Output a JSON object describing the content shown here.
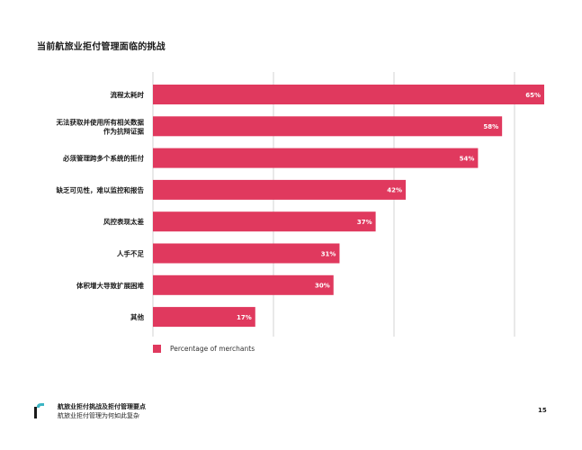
{
  "page": {
    "title": "当前航旅业拒付管理面临的挑战",
    "footer_line1": "航旅业拒付挑战及拒付管理要点",
    "footer_line2": "航旅业拒付管理为何如此复杂",
    "page_number": "15"
  },
  "colors": {
    "bar": "#e0395e",
    "grid": "#c8c8c8",
    "logo_teal": "#3bb5c4"
  },
  "chart_data": {
    "type": "bar",
    "orientation": "horizontal",
    "title": "",
    "xlabel": "",
    "ylabel": "",
    "xlim": [
      0,
      65
    ],
    "grid": true,
    "legend_position": "bottom-left",
    "value_suffix": "%",
    "categories": [
      [
        "流程太耗时"
      ],
      [
        "无法获取并使用所有相关数据",
        "作为抗辩证据"
      ],
      [
        "必须管理跨多个系统的拒付"
      ],
      [
        "缺乏可见性，难以监控和报告"
      ],
      [
        "风控表现太差"
      ],
      [
        "人手不足"
      ],
      [
        "体积增大导致扩展困难"
      ],
      [
        "其他"
      ]
    ],
    "series": [
      {
        "name": "Percentage of merchants",
        "values": [
          65,
          58,
          54,
          42,
          37,
          31,
          30,
          17
        ]
      }
    ]
  }
}
